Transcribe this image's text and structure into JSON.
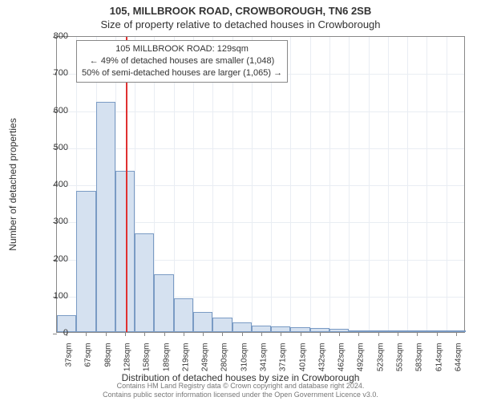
{
  "title": "105, MILLBROOK ROAD, CROWBOROUGH, TN6 2SB",
  "subtitle": "Size of property relative to detached houses in Crowborough",
  "ylabel": "Number of detached properties",
  "xlabel": "Distribution of detached houses by size in Crowborough",
  "chart": {
    "type": "histogram",
    "bar_fill": "#d5e1f0",
    "bar_stroke": "#7a9bc4",
    "grid_color": "#e9edf3",
    "axis_color": "#888888",
    "marker_color": "#e03131",
    "marker_x_value": 129,
    "background": "#ffffff",
    "ylim": [
      0,
      800
    ],
    "ytick_step": 100,
    "x_start": 37,
    "x_step": 30.4,
    "x_labels": [
      "37sqm",
      "67sqm",
      "98sqm",
      "128sqm",
      "158sqm",
      "189sqm",
      "219sqm",
      "249sqm",
      "280sqm",
      "310sqm",
      "341sqm",
      "371sqm",
      "401sqm",
      "432sqm",
      "462sqm",
      "492sqm",
      "523sqm",
      "553sqm",
      "583sqm",
      "614sqm",
      "644sqm"
    ],
    "values": [
      45,
      380,
      620,
      435,
      265,
      155,
      90,
      55,
      40,
      25,
      18,
      15,
      12,
      10,
      8,
      4,
      3,
      2,
      2,
      1,
      1
    ],
    "bar_count": 21,
    "label_fontsize": 12,
    "tick_fontsize": 10
  },
  "annotation": {
    "line1": "105 MILLBROOK ROAD: 129sqm",
    "line2": "← 49% of detached houses are smaller (1,048)",
    "line3": "50% of semi-detached houses are larger (1,065) →"
  },
  "footer": {
    "line1": "Contains HM Land Registry data © Crown copyright and database right 2024.",
    "line2": "Contains public sector information licensed under the Open Government Licence v3.0."
  }
}
